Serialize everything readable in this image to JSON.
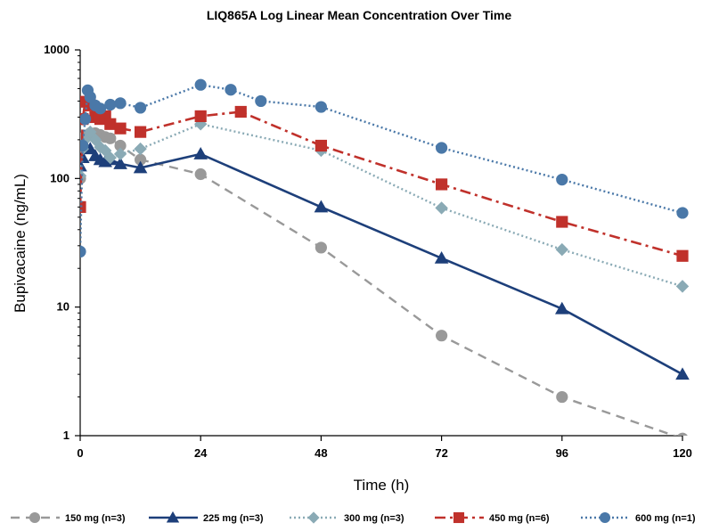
{
  "chart_data": {
    "type": "line",
    "title": "LIQ865A Log Linear Mean Concentration Over Time",
    "xlabel": "Time (h)",
    "ylabel": "Bupivacaine  (ng/mL)",
    "yscale": "log",
    "xlim": [
      0,
      120
    ],
    "ylim": [
      1,
      1000
    ],
    "xticks": [
      0,
      24,
      48,
      72,
      96,
      120
    ],
    "xtick_labels": [
      "0",
      "24",
      "48",
      "72",
      "96",
      "120"
    ],
    "yticks": [
      1,
      10,
      100,
      1000
    ],
    "ytick_labels": [
      "1",
      "10",
      "100",
      "1000"
    ],
    "grid": false,
    "legend_position": "bottom",
    "series": [
      {
        "name": "150 mg (n=3)",
        "color": "#999999",
        "marker": "circle",
        "line_style": "dashed",
        "points": [
          [
            0,
            100
          ],
          [
            0.5,
            180
          ],
          [
            1,
            215
          ],
          [
            2,
            225
          ],
          [
            3,
            225
          ],
          [
            4,
            218
          ],
          [
            5,
            210
          ],
          [
            6,
            205
          ],
          [
            8,
            180
          ],
          [
            12,
            140
          ],
          [
            24,
            108
          ],
          [
            48,
            29
          ],
          [
            72,
            6
          ],
          [
            96,
            2
          ],
          [
            120,
            0.95
          ]
        ]
      },
      {
        "name": "225 mg (n=3)",
        "color": "#1d3f7a",
        "marker": "triangle",
        "line_style": "solid",
        "points": [
          [
            0,
            125
          ],
          [
            0.5,
            145
          ],
          [
            1,
            175
          ],
          [
            2,
            170
          ],
          [
            3,
            150
          ],
          [
            4,
            140
          ],
          [
            5,
            135
          ],
          [
            6,
            140
          ],
          [
            8,
            130
          ],
          [
            12,
            121
          ],
          [
            24,
            155
          ],
          [
            48,
            60
          ],
          [
            72,
            24
          ],
          [
            96,
            9.7
          ],
          [
            120,
            3
          ]
        ]
      },
      {
        "name": "300 mg (n=3)",
        "color": "#8aaab5",
        "marker": "diamond",
        "line_style": "dotted",
        "points": [
          [
            0,
            105
          ],
          [
            0.5,
            170
          ],
          [
            1,
            200
          ],
          [
            2,
            230
          ],
          [
            3,
            200
          ],
          [
            4,
            175
          ],
          [
            5,
            165
          ],
          [
            6,
            145
          ],
          [
            8,
            155
          ],
          [
            12,
            170
          ],
          [
            24,
            265
          ],
          [
            48,
            165
          ],
          [
            72,
            59
          ],
          [
            96,
            28
          ],
          [
            120,
            14.5
          ]
        ]
      },
      {
        "name": "450 mg (n=6)",
        "color": "#c0312b",
        "marker": "square",
        "line_style": "dashdot",
        "points": [
          [
            0,
            60
          ],
          [
            0.5,
            290
          ],
          [
            1,
            395
          ],
          [
            2,
            370
          ],
          [
            3,
            300
          ],
          [
            4,
            290
          ],
          [
            5,
            305
          ],
          [
            6,
            265
          ],
          [
            8,
            245
          ],
          [
            12,
            230
          ],
          [
            24,
            305
          ],
          [
            32,
            330
          ],
          [
            48,
            180
          ],
          [
            72,
            90
          ],
          [
            96,
            46
          ],
          [
            120,
            25
          ]
        ]
      },
      {
        "name": "600 mg (n=1)",
        "color": "#4a78a8",
        "marker": "circle",
        "line_style": "dotted",
        "points": [
          [
            0,
            27
          ],
          [
            0.5,
            180
          ],
          [
            1,
            290
          ],
          [
            1.5,
            485
          ],
          [
            2,
            430
          ],
          [
            3,
            370
          ],
          [
            4,
            350
          ],
          [
            6,
            375
          ],
          [
            8,
            385
          ],
          [
            12,
            355
          ],
          [
            24,
            535
          ],
          [
            30,
            490
          ],
          [
            36,
            400
          ],
          [
            48,
            360
          ],
          [
            72,
            173
          ],
          [
            96,
            98
          ],
          [
            120,
            54
          ]
        ]
      }
    ]
  }
}
